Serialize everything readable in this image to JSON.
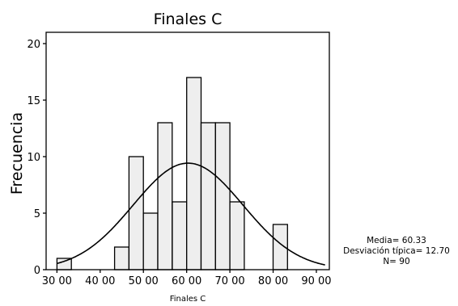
{
  "chart_data": {
    "type": "bar",
    "subtype": "histogram",
    "title": "Finales C",
    "xlabel": "Finales C",
    "ylabel": "Frecuencia",
    "xlim": [
      27.5,
      93
    ],
    "ylim": [
      0,
      21
    ],
    "y_ticks": [
      0,
      5,
      10,
      15,
      20
    ],
    "y_tick_labels": [
      "0",
      "5",
      "10",
      "15",
      "20"
    ],
    "x_ticks": [
      30,
      40,
      50,
      60,
      70,
      80,
      90
    ],
    "x_tick_labels": [
      "30 00",
      "40 00",
      "50 00",
      "60 00",
      "70 00",
      "80 00",
      "90 00"
    ],
    "bins": [
      {
        "start": 30.0,
        "end": 33.33,
        "count": 1
      },
      {
        "start": 43.33,
        "end": 46.67,
        "count": 2
      },
      {
        "start": 46.67,
        "end": 50.0,
        "count": 10
      },
      {
        "start": 50.0,
        "end": 53.33,
        "count": 5
      },
      {
        "start": 53.33,
        "end": 56.67,
        "count": 13
      },
      {
        "start": 56.67,
        "end": 60.0,
        "count": 6
      },
      {
        "start": 60.0,
        "end": 63.33,
        "count": 17
      },
      {
        "start": 63.33,
        "end": 66.67,
        "count": 13
      },
      {
        "start": 66.67,
        "end": 70.0,
        "count": 13
      },
      {
        "start": 70.0,
        "end": 73.33,
        "count": 6
      },
      {
        "start": 80.0,
        "end": 83.33,
        "count": 4
      }
    ],
    "normal_curve": {
      "mean": 60.33,
      "sd": 12.7,
      "n": 90,
      "bin_width": 3.333
    },
    "stats_lines": [
      "Media= 60.33",
      "Desviación típica= 12.70",
      "N= 90"
    ],
    "grid": false,
    "colors": {
      "bar_fill": "#eeeeee",
      "bar_stroke": "#000000",
      "curve": "#000000"
    }
  }
}
